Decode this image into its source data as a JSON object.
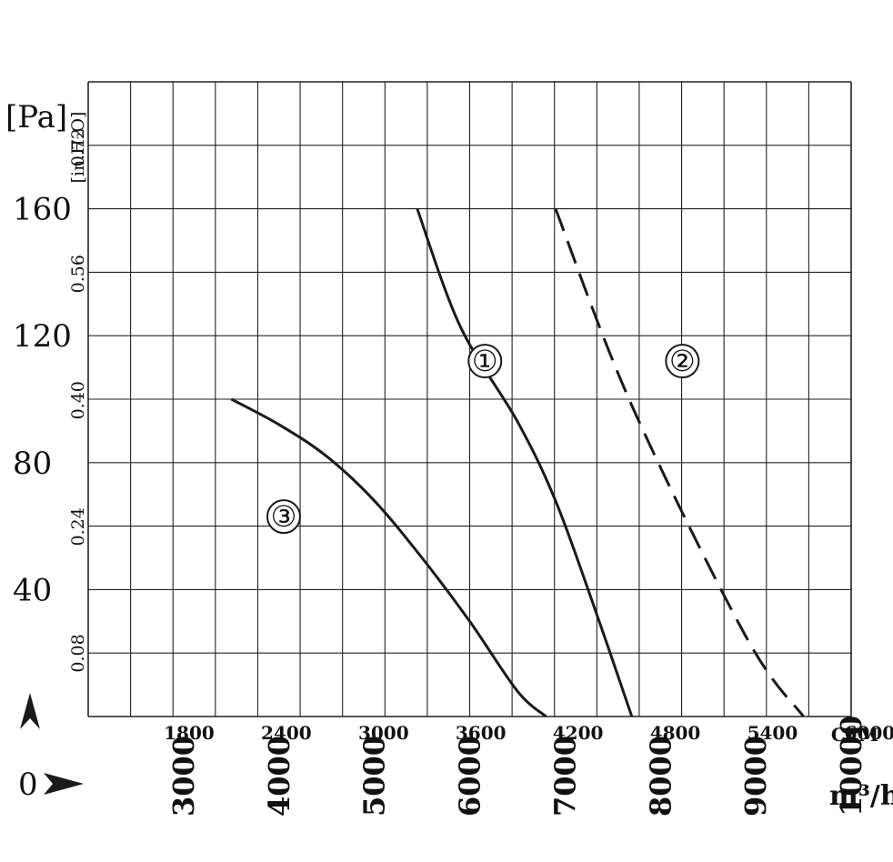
{
  "colors": {
    "background": "#ffffff",
    "ink": "#1a1a1a",
    "grid": "#222222"
  },
  "chart_data": {
    "type": "line",
    "grid": true,
    "axes": {
      "x_m3h": {
        "range": [
          2000,
          10000
        ],
        "ticks": [
          "3000",
          "4000",
          "5000",
          "6000",
          "7000",
          "8000",
          "9000",
          "10000"
        ],
        "unit": "m³/h"
      },
      "x_cfm": {
        "ticks": [
          "1800",
          "2400",
          "3000",
          "3600",
          "4200",
          "4800",
          "5400",
          "6000"
        ],
        "unit": "CFM"
      },
      "y_pa": {
        "range": [
          0,
          200
        ],
        "ticks": [
          "40",
          "80",
          "120",
          "160"
        ],
        "unit": "[Pa]",
        "origin_label": "0"
      },
      "y_inh2o": {
        "ticks": [
          "0.08",
          "0.24",
          "0.40",
          "0.56",
          "0.72"
        ],
        "unit": "[in.H₂O]"
      }
    },
    "series": [
      {
        "name": "①",
        "style": "solid",
        "label_at": [
          6160,
          112
        ],
        "points": [
          [
            5450,
            160
          ],
          [
            5900,
            123
          ],
          [
            6500,
            93
          ],
          [
            6900,
            68
          ],
          [
            7300,
            35
          ],
          [
            7700,
            0
          ]
        ]
      },
      {
        "name": "②",
        "style": "dashed",
        "label_at": [
          8230,
          112
        ],
        "points": [
          [
            6900,
            160
          ],
          [
            7700,
            98
          ],
          [
            8900,
            25
          ],
          [
            9500,
            0
          ]
        ]
      },
      {
        "name": "③",
        "style": "solid",
        "label_at": [
          4050,
          63
        ],
        "points": [
          [
            3500,
            100
          ],
          [
            4000,
            92
          ],
          [
            4500,
            82
          ],
          [
            5000,
            68
          ],
          [
            5500,
            50
          ],
          [
            6000,
            30
          ],
          [
            6500,
            8
          ],
          [
            6800,
            0
          ]
        ]
      }
    ]
  }
}
